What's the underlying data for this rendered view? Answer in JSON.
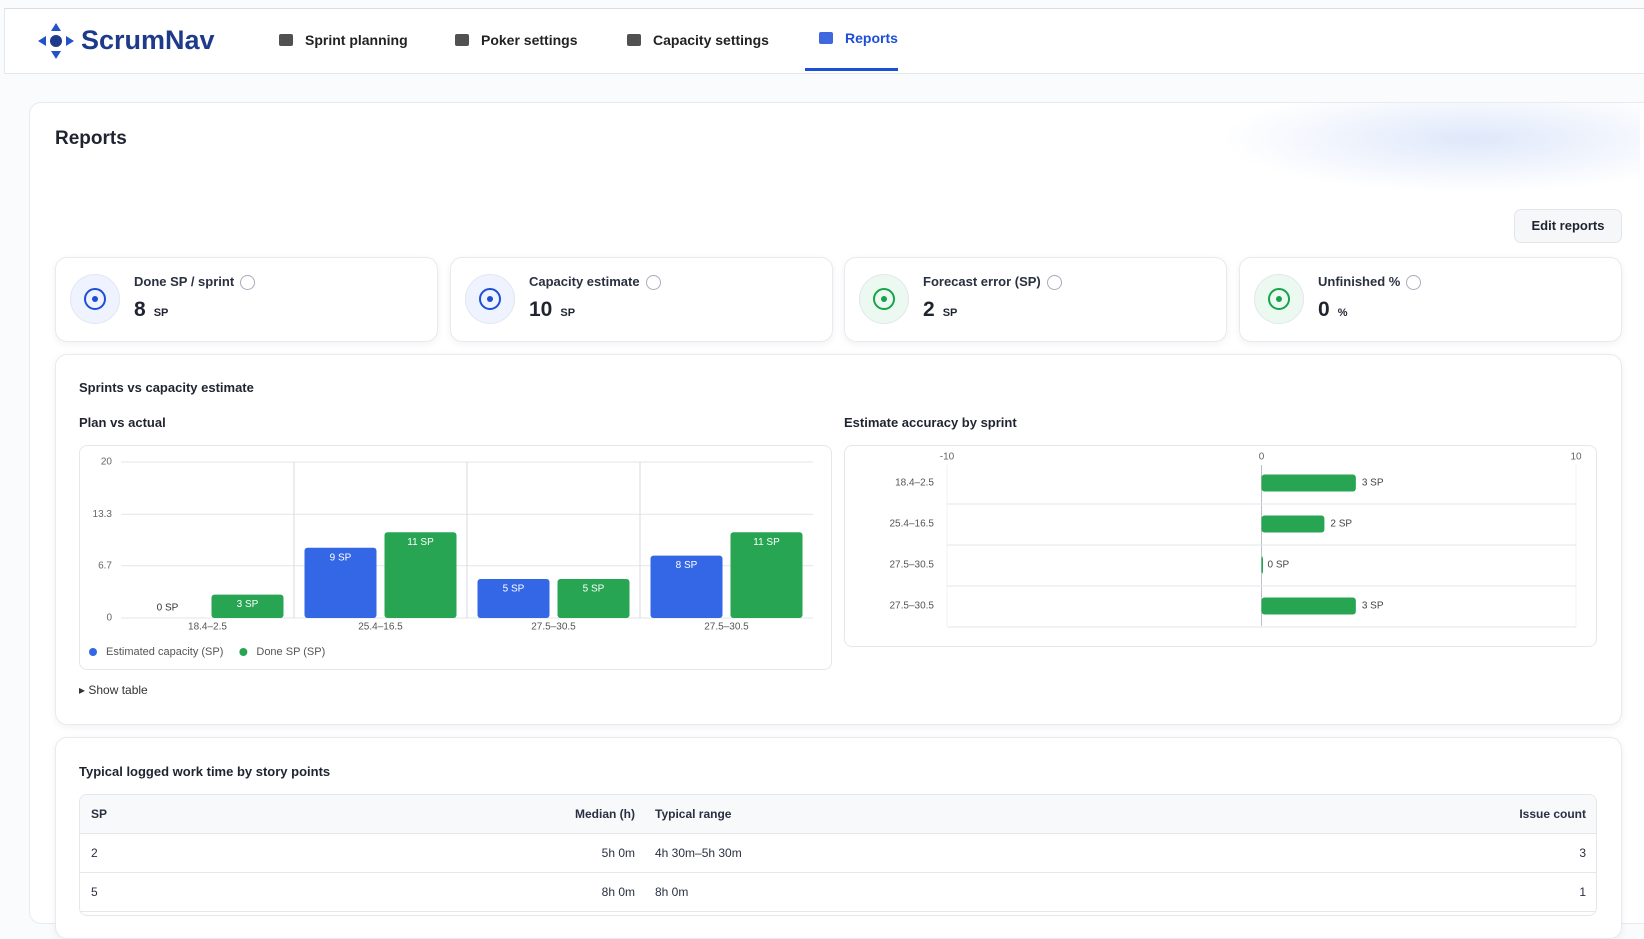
{
  "nav": {
    "brand": "ScrumNav",
    "items": [
      "Sprint planning",
      "Poker settings",
      "Capacity settings",
      "Reports"
    ],
    "active": 3
  },
  "page": {
    "title": "Reports",
    "edit_button": "Edit reports"
  },
  "kpis": [
    {
      "label": "Done SP / sprint",
      "value": 8,
      "unit": "SP"
    },
    {
      "label": "Capacity estimate",
      "value": 10,
      "unit": "SP"
    },
    {
      "label": "Forecast error (SP)",
      "value": 2,
      "unit": "SP"
    },
    {
      "label": "Unfinished %",
      "value": 0,
      "unit": "%"
    }
  ],
  "sprints_section": {
    "title": "Sprints vs capacity estimate",
    "show_table": "Show table",
    "plan_chart": {
      "type": "bar",
      "title": "Plan vs actual",
      "categories": [
        "18.4–2.5",
        "25.4–16.5",
        "27.5–30.5",
        "27.5–30.5"
      ],
      "series": [
        {
          "name": "Estimated capacity (SP)",
          "color": "#3367e5",
          "values": [
            0,
            9,
            5,
            8
          ],
          "value_labels": [
            "0 SP",
            "9 SP",
            "5 SP",
            "8 SP"
          ]
        },
        {
          "name": "Done SP (SP)",
          "color": "#27a552",
          "values": [
            3,
            11,
            5,
            11
          ],
          "value_labels": [
            "3 SP",
            "11 SP",
            "5 SP",
            "11 SP"
          ]
        }
      ],
      "ylim": [
        0,
        20
      ],
      "yticks": [
        0,
        6.7,
        13.3,
        20
      ],
      "grid": true
    },
    "accuracy_chart": {
      "type": "hbar",
      "title": "Estimate accuracy by sprint",
      "categories": [
        "18.4–2.5",
        "25.4–16.5",
        "27.5–30.5",
        "27.5–30.5"
      ],
      "values": [
        3,
        2,
        0,
        3
      ],
      "value_labels": [
        "3 SP",
        "2 SP",
        "0 SP",
        "3 SP"
      ],
      "color": "#27a552",
      "xlim": [
        -10,
        10
      ],
      "xticks": [
        -10,
        0,
        10
      ]
    }
  },
  "work_time": {
    "title": "Typical logged work time by story points",
    "columns": [
      "SP",
      "Median (h)",
      "Typical range",
      "Issue count"
    ],
    "rows": [
      [
        2,
        "5h 0m",
        "4h 30m–5h 30m",
        3
      ],
      [
        5,
        "8h 0m",
        "8h 0m",
        1
      ]
    ]
  }
}
